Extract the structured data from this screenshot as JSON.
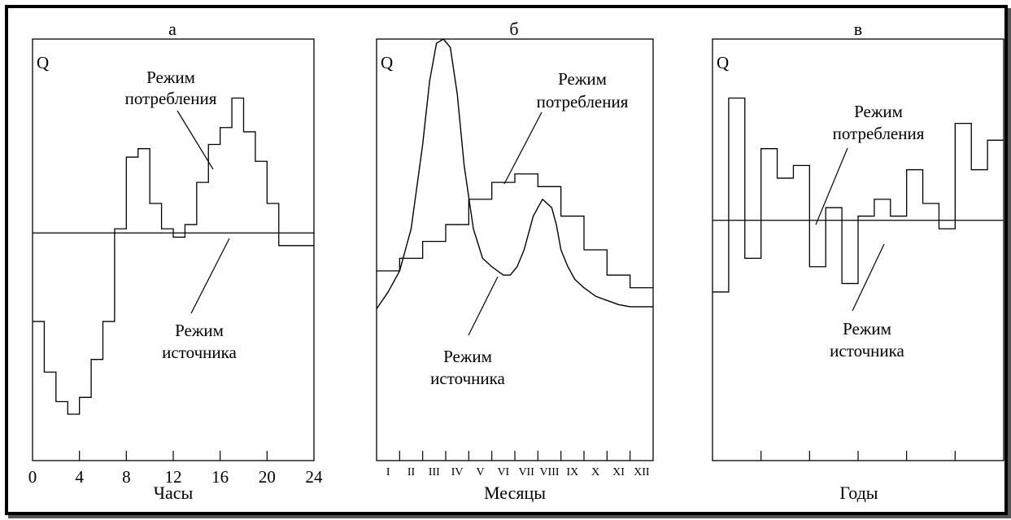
{
  "chart_data": [
    {
      "type": "line",
      "panel_letter": "а",
      "y_axis_label": "Q",
      "xlabel": "Часы",
      "x_ticks": [
        "0",
        "4",
        "8",
        "12",
        "16",
        "20",
        "24"
      ],
      "xlim": [
        0,
        24
      ],
      "ylim": [
        0,
        100
      ],
      "source_regime_level": 54,
      "consumption_regime": {
        "x": [
          0,
          1,
          2,
          3,
          4,
          5,
          6,
          7,
          8,
          9,
          10,
          11,
          12,
          13,
          14,
          15,
          16,
          17,
          18,
          19,
          20,
          21,
          22,
          23
        ],
        "values": [
          33,
          21,
          14,
          11,
          15,
          24,
          33,
          55,
          72,
          74,
          61,
          55,
          53,
          56,
          66,
          75,
          79,
          86,
          78,
          71,
          61,
          51,
          51,
          51
        ]
      },
      "labels": {
        "consumption": [
          "Режим",
          "потребления"
        ],
        "source": [
          "Режим",
          "источника"
        ]
      }
    },
    {
      "type": "line",
      "panel_letter": "б",
      "y_axis_label": "Q",
      "xlabel": "Месяцы",
      "x_ticks": [
        "I",
        "II",
        "III",
        "IV",
        "V",
        "VI",
        "VII",
        "VIII",
        "IX",
        "X",
        "XI",
        "XII"
      ],
      "xlim": [
        0,
        12
      ],
      "ylim": [
        0,
        100
      ],
      "source_regime": {
        "x": [
          0,
          0.5,
          1,
          1.5,
          2,
          2.3,
          2.6,
          2.9,
          3.2,
          3.5,
          3.8,
          4.2,
          4.6,
          5,
          5.5,
          5.8,
          6.1,
          6.4,
          6.8,
          7.2,
          7.6,
          7.8,
          8,
          8.3,
          8.6,
          9,
          9.5,
          10,
          10.5,
          11,
          11.5,
          12
        ],
        "values": [
          36,
          40,
          45,
          55,
          75,
          90,
          99,
          100,
          98,
          87,
          70,
          55,
          48,
          46,
          44,
          44,
          46,
          50,
          58,
          62,
          60,
          56,
          50,
          46,
          43,
          41,
          39,
          38,
          37,
          36.5,
          36.5,
          36.5
        ]
      },
      "consumption_regime": {
        "x": [
          0,
          1,
          2,
          3,
          4,
          5,
          6,
          7,
          8,
          9,
          10,
          11
        ],
        "values": [
          45,
          48,
          52,
          56,
          62,
          66,
          68,
          65,
          58,
          50,
          44,
          41
        ]
      },
      "labels": {
        "consumption": [
          "Режим",
          "потребления"
        ],
        "source": [
          "Режим",
          "источника"
        ]
      }
    },
    {
      "type": "line",
      "panel_letter": "в",
      "y_axis_label": "Q",
      "xlabel": "Годы",
      "xlim": [
        0,
        18
      ],
      "ylim": [
        0,
        100
      ],
      "consumption_regime_level": 57,
      "source_regime": {
        "x": [
          0,
          1,
          2,
          3,
          4,
          5,
          6,
          7,
          8,
          9,
          10,
          11,
          12,
          13,
          14,
          15,
          16,
          17
        ],
        "values": [
          40,
          86,
          48,
          74,
          67,
          70,
          46,
          60,
          42,
          58,
          62,
          58,
          69,
          61,
          55,
          80,
          69,
          76
        ]
      },
      "labels": {
        "consumption": [
          "Режим",
          "потребления"
        ],
        "source": [
          "Режим",
          "источника"
        ]
      }
    }
  ]
}
